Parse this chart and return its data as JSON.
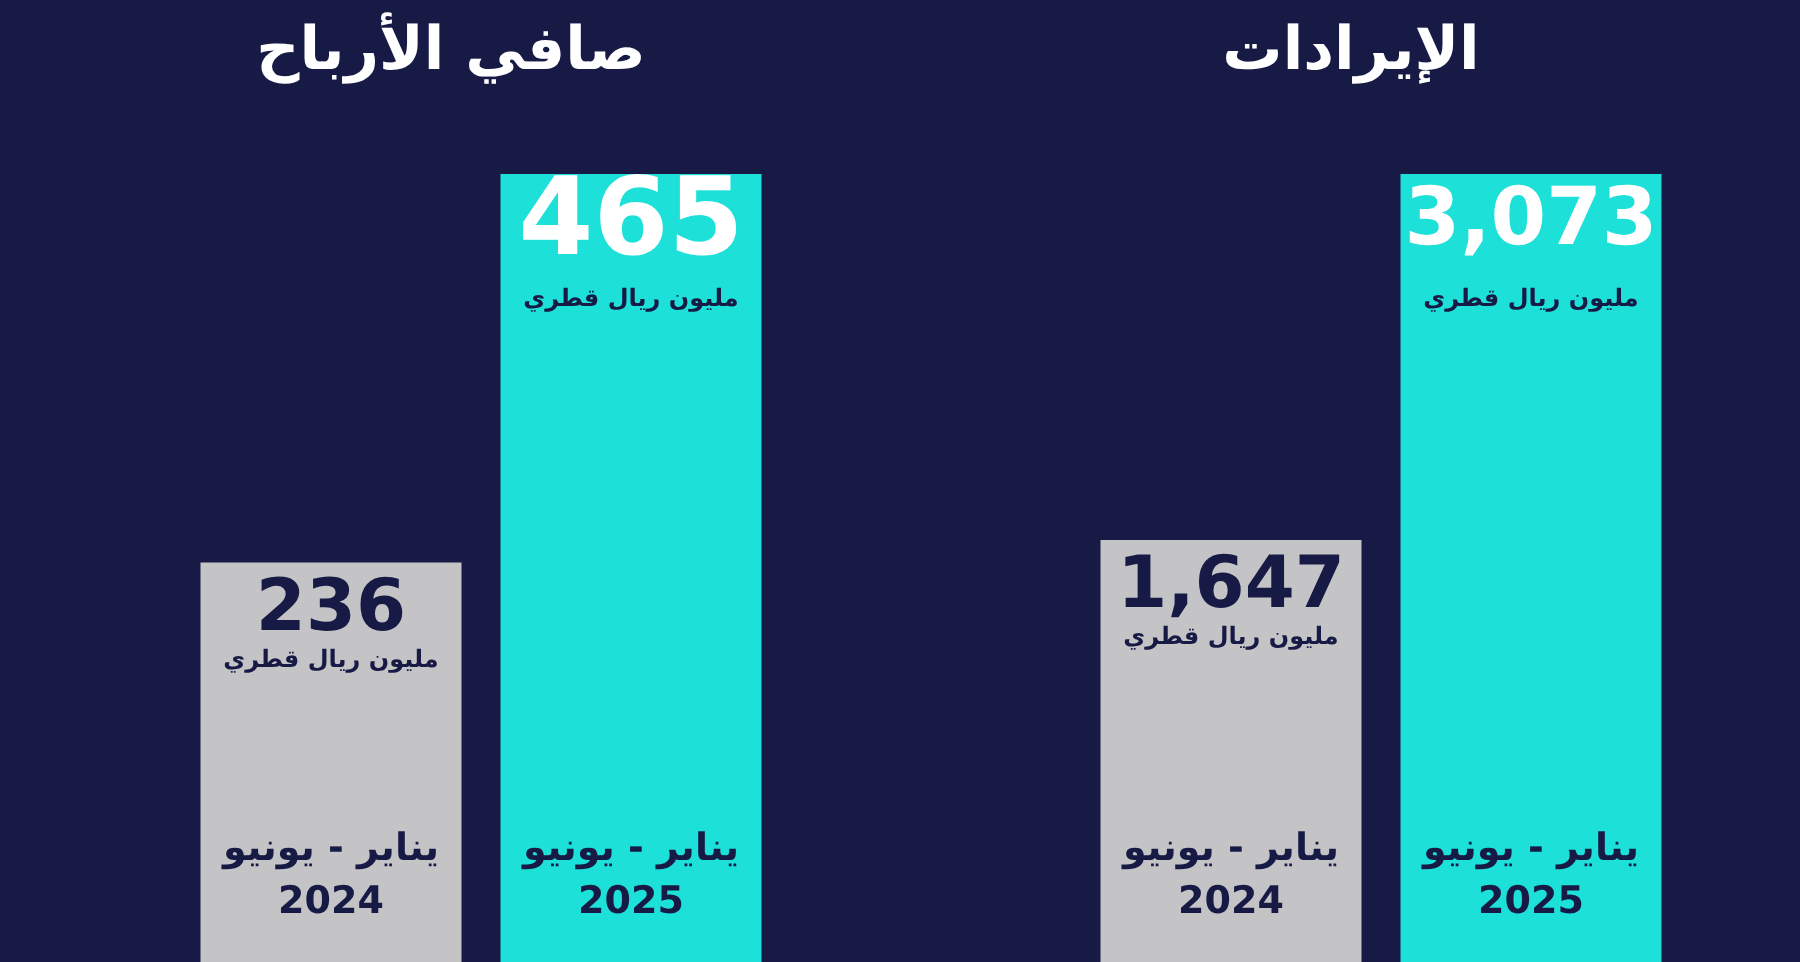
{
  "chart_data": [
    {
      "type": "bar",
      "title": "صافي الأرباح",
      "ylabel": "مليون ريال قطري",
      "categories": [
        "يناير - يونيو 2024",
        "يناير - يونيو 2025"
      ],
      "values": [
        236,
        465
      ],
      "value_labels": [
        "236",
        "465"
      ],
      "colors": [
        "#c4c4c6",
        "#1de0d8"
      ]
    },
    {
      "type": "bar",
      "title": "الإيرادات",
      "ylabel": "مليون ريال قطري",
      "categories": [
        "يناير - يونيو 2024",
        "يناير - يونيو 2025"
      ],
      "values": [
        1647,
        3073
      ],
      "value_labels": [
        "1,647",
        "3,073"
      ],
      "colors": [
        "#c4c4c6",
        "#1de0d8"
      ]
    }
  ]
}
